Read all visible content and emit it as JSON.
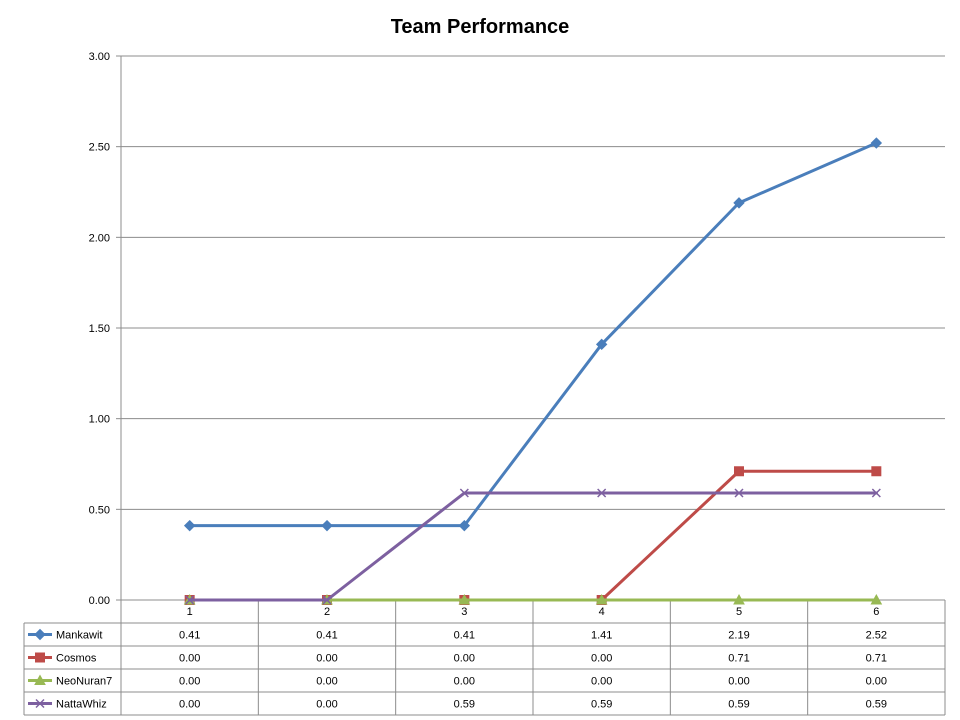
{
  "chart_data": {
    "type": "line",
    "title": "Team Performance",
    "xlabel": "",
    "ylabel": "",
    "categories": [
      "1",
      "2",
      "3",
      "4",
      "5",
      "6"
    ],
    "ylim": [
      0,
      3
    ],
    "y_ticks": [
      "0.00",
      "0.50",
      "1.00",
      "1.50",
      "2.00",
      "2.50",
      "3.00"
    ],
    "grid": true,
    "legend": "data-table",
    "series": [
      {
        "name": "Mankawit",
        "color": "#4A7EBB",
        "marker": "diamond",
        "values": [
          0.41,
          0.41,
          0.41,
          1.41,
          2.19,
          2.52
        ],
        "labels": [
          "0.41",
          "0.41",
          "0.41",
          "1.41",
          "2.19",
          "2.52"
        ]
      },
      {
        "name": "Cosmos",
        "color": "#BE4B48",
        "marker": "square",
        "values": [
          0.0,
          0.0,
          0.0,
          0.0,
          0.71,
          0.71
        ],
        "labels": [
          "0.00",
          "0.00",
          "0.00",
          "0.00",
          "0.71",
          "0.71"
        ]
      },
      {
        "name": "NeoNuran7",
        "color": "#98B954",
        "marker": "triangle",
        "values": [
          0.0,
          0.0,
          0.0,
          0.0,
          0.0,
          0.0
        ],
        "labels": [
          "0.00",
          "0.00",
          "0.00",
          "0.00",
          "0.00",
          "0.00"
        ]
      },
      {
        "name": "NattaWhiz",
        "color": "#7D60A0",
        "marker": "x",
        "values": [
          0.0,
          0.0,
          0.59,
          0.59,
          0.59,
          0.59
        ],
        "labels": [
          "0.00",
          "0.00",
          "0.59",
          "0.59",
          "0.59",
          "0.59"
        ]
      }
    ]
  }
}
